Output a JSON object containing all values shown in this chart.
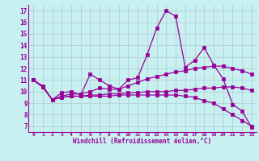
{
  "xlabel": "Windchill (Refroidissement éolien,°C)",
  "background_color": "#c8f0f0",
  "line_color": "#990099",
  "grid_color": "#aacccc",
  "xlim": [
    -0.5,
    23.5
  ],
  "ylim": [
    6.5,
    17.5
  ],
  "xticks": [
    0,
    1,
    2,
    3,
    4,
    5,
    6,
    7,
    8,
    9,
    10,
    11,
    12,
    13,
    14,
    15,
    16,
    17,
    18,
    19,
    20,
    21,
    22,
    23
  ],
  "yticks": [
    7,
    8,
    9,
    10,
    11,
    12,
    13,
    14,
    15,
    16,
    17
  ],
  "series": [
    [
      11.0,
      10.5,
      9.3,
      9.9,
      10.0,
      9.7,
      11.5,
      11.0,
      10.5,
      10.2,
      11.0,
      11.2,
      13.2,
      15.5,
      17.0,
      16.5,
      12.1,
      12.7,
      13.8,
      12.3,
      11.1,
      8.9,
      8.3,
      6.9
    ],
    [
      11.0,
      10.4,
      9.3,
      9.6,
      9.8,
      9.8,
      10.0,
      10.3,
      10.2,
      10.2,
      10.5,
      10.8,
      11.1,
      11.3,
      11.5,
      11.7,
      11.8,
      12.0,
      12.1,
      12.2,
      12.2,
      12.0,
      11.8,
      11.5
    ],
    [
      11.0,
      10.4,
      9.3,
      9.5,
      9.6,
      9.6,
      9.7,
      9.7,
      9.8,
      9.8,
      9.9,
      9.9,
      10.0,
      10.0,
      10.0,
      10.1,
      10.1,
      10.2,
      10.3,
      10.3,
      10.4,
      10.4,
      10.3,
      10.1
    ],
    [
      11.0,
      10.4,
      9.3,
      9.5,
      9.6,
      9.6,
      9.6,
      9.6,
      9.6,
      9.7,
      9.7,
      9.7,
      9.7,
      9.7,
      9.7,
      9.7,
      9.6,
      9.5,
      9.2,
      9.0,
      8.5,
      8.0,
      7.5,
      7.0
    ]
  ]
}
